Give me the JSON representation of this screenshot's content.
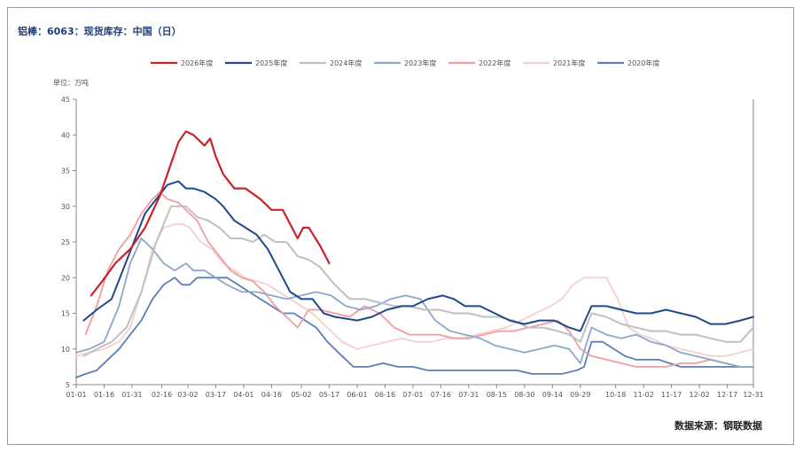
{
  "title": "铝棒：6063：现货库存：中国（日）",
  "source": "数据来源：钢联数据",
  "chart_data": {
    "type": "line",
    "ylabel": "单位：万吨",
    "ylim": [
      5,
      45
    ],
    "yticks": [
      5,
      10,
      15,
      20,
      25,
      30,
      35,
      40,
      45
    ],
    "xlim": [
      1,
      365
    ],
    "xticks": [
      {
        "label": "01-01",
        "day": 1
      },
      {
        "label": "01-16",
        "day": 16
      },
      {
        "label": "01-31",
        "day": 31
      },
      {
        "label": "02-16",
        "day": 47
      },
      {
        "label": "03-02",
        "day": 61
      },
      {
        "label": "03-17",
        "day": 76
      },
      {
        "label": "04-01",
        "day": 91
      },
      {
        "label": "04-16",
        "day": 106
      },
      {
        "label": "05-02",
        "day": 122
      },
      {
        "label": "05-17",
        "day": 137
      },
      {
        "label": "06-01",
        "day": 152
      },
      {
        "label": "06-16",
        "day": 167
      },
      {
        "label": "07-01",
        "day": 182
      },
      {
        "label": "07-16",
        "day": 197
      },
      {
        "label": "07-31",
        "day": 212
      },
      {
        "label": "08-15",
        "day": 227
      },
      {
        "label": "08-30",
        "day": 242
      },
      {
        "label": "09-14",
        "day": 257
      },
      {
        "label": "09-29",
        "day": 272
      },
      {
        "label": "10-18",
        "day": 291
      },
      {
        "label": "11-02",
        "day": 306
      },
      {
        "label": "11-17",
        "day": 321
      },
      {
        "label": "12-02",
        "day": 336
      },
      {
        "label": "12-17",
        "day": 351
      },
      {
        "label": "12-31",
        "day": 365
      }
    ],
    "legend_position": "top",
    "series": [
      {
        "name": "2026年度",
        "color": "#c8222a",
        "width": 2.2,
        "x": [
          9,
          15,
          22,
          30,
          38,
          46,
          52,
          56,
          60,
          64,
          70,
          73,
          76,
          80,
          86,
          92,
          100,
          106,
          112,
          116,
          120,
          123,
          126,
          132,
          137
        ],
        "y": [
          17.5,
          19.5,
          22,
          24,
          27,
          31.5,
          36,
          39,
          40.5,
          40,
          38.5,
          39.5,
          37,
          34.5,
          32.5,
          32.5,
          31,
          29.5,
          29.5,
          27.5,
          25.5,
          27,
          27,
          24.5,
          22
        ]
      },
      {
        "name": "2025年度",
        "color": "#21478c",
        "width": 2.0,
        "x": [
          5,
          12,
          20,
          26,
          32,
          38,
          44,
          50,
          56,
          60,
          64,
          70,
          76,
          80,
          86,
          92,
          98,
          104,
          110,
          116,
          122,
          128,
          134,
          140,
          152,
          160,
          168,
          176,
          182,
          190,
          198,
          204,
          210,
          218,
          226,
          234,
          242,
          250,
          258,
          266,
          272,
          278,
          286,
          294,
          302,
          310,
          318,
          326,
          334,
          342,
          350,
          358,
          365
        ],
        "y": [
          14,
          15.5,
          17,
          21,
          25,
          29,
          31,
          33,
          33.5,
          32.5,
          32.5,
          32,
          31,
          30,
          28,
          27,
          26,
          24,
          21,
          18,
          17,
          17,
          15,
          14.5,
          14,
          14.5,
          15.5,
          16,
          16,
          17,
          17.5,
          17,
          16,
          16,
          15,
          14,
          13.5,
          14,
          14,
          13,
          12.5,
          16,
          16,
          15.5,
          15,
          15,
          15.5,
          15,
          14.5,
          13.5,
          13.5,
          14,
          14.5
        ]
      },
      {
        "name": "2024年度",
        "color": "#c0c0c0",
        "width": 2.0,
        "x": [
          5,
          12,
          20,
          28,
          36,
          44,
          52,
          60,
          66,
          72,
          78,
          84,
          90,
          96,
          102,
          108,
          114,
          120,
          126,
          132,
          140,
          148,
          156,
          164,
          172,
          180,
          188,
          196,
          204,
          212,
          220,
          228,
          236,
          244,
          252,
          260,
          266,
          272,
          278,
          286,
          294,
          302,
          310,
          318,
          326,
          334,
          342,
          350,
          358,
          365
        ],
        "y": [
          9,
          10,
          11,
          13,
          18,
          25,
          30,
          30,
          28.5,
          28,
          27,
          25.5,
          25.5,
          25,
          26,
          25,
          25,
          23,
          22.5,
          21.5,
          19,
          17,
          17,
          16.5,
          16,
          16,
          15.5,
          15.5,
          15,
          15,
          14.5,
          14.5,
          14,
          13,
          13,
          12.5,
          12,
          11,
          15,
          14.5,
          13.5,
          13,
          12.5,
          12.5,
          12,
          12,
          11.5,
          11,
          11,
          13
        ]
      },
      {
        "name": "2023年度",
        "color": "#8ca6cc",
        "width": 1.8,
        "x": [
          1,
          8,
          16,
          24,
          30,
          36,
          42,
          48,
          54,
          60,
          64,
          70,
          76,
          82,
          90,
          98,
          106,
          114,
          122,
          130,
          138,
          146,
          154,
          162,
          170,
          178,
          186,
          194,
          202,
          210,
          218,
          226,
          234,
          242,
          250,
          258,
          266,
          272,
          278,
          286,
          294,
          302,
          310,
          318,
          326,
          334,
          342,
          350,
          358,
          365
        ],
        "y": [
          9.5,
          10,
          11,
          16,
          22,
          25.5,
          24,
          22,
          21,
          22,
          21,
          21,
          20,
          19,
          18,
          18,
          17.5,
          17,
          17.5,
          18,
          17.5,
          16,
          15.5,
          16,
          17,
          17.5,
          17,
          14,
          12.5,
          12,
          11.5,
          10.5,
          10,
          9.5,
          10,
          10.5,
          10,
          8,
          13,
          12,
          11.5,
          12,
          11,
          10.5,
          9.5,
          9,
          8.5,
          8,
          7.5,
          7.5
        ]
      },
      {
        "name": "2022年度",
        "color": "#f09ca0",
        "width": 1.8,
        "x": [
          6,
          12,
          18,
          24,
          30,
          36,
          42,
          46,
          50,
          56,
          60,
          66,
          72,
          78,
          84,
          90,
          96,
          102,
          108,
          114,
          120,
          126,
          132,
          140,
          148,
          156,
          164,
          172,
          180,
          188,
          196,
          204,
          212,
          220,
          228,
          236,
          244,
          252,
          260,
          266,
          272,
          278,
          286,
          294,
          302,
          310,
          318,
          326,
          334,
          342,
          350,
          358,
          365
        ],
        "y": [
          12,
          16,
          21,
          24,
          26,
          29,
          31,
          32,
          31,
          30.5,
          29.5,
          28,
          25,
          23,
          21,
          20,
          19.5,
          18,
          16,
          14.5,
          13,
          15.5,
          15.5,
          15,
          14.5,
          16,
          15,
          13,
          12,
          12,
          12,
          11.5,
          11.5,
          12,
          12.5,
          12.5,
          13,
          13.5,
          14,
          12.5,
          10,
          9,
          8.5,
          8,
          7.5,
          7.5,
          7.5,
          8,
          8,
          8.5,
          8,
          7.5,
          7.5
        ]
      },
      {
        "name": "2021年度",
        "color": "#f3cfcf",
        "width": 1.8,
        "x": [
          1,
          8,
          16,
          24,
          30,
          36,
          42,
          48,
          54,
          58,
          62,
          68,
          74,
          80,
          86,
          92,
          98,
          104,
          110,
          116,
          122,
          128,
          136,
          144,
          152,
          160,
          168,
          176,
          184,
          192,
          200,
          208,
          216,
          224,
          232,
          240,
          248,
          256,
          262,
          268,
          274,
          280,
          286,
          292,
          298,
          304,
          310,
          318,
          326,
          334,
          342,
          350,
          358,
          365
        ],
        "y": [
          9,
          9.5,
          10,
          11,
          13,
          18,
          24,
          27,
          27.5,
          27.5,
          27,
          25,
          24,
          22,
          21,
          20,
          19.5,
          19,
          18,
          17,
          16,
          15,
          13,
          11,
          10,
          10.5,
          11,
          11.5,
          11,
          11,
          11.5,
          11.5,
          12,
          12.5,
          13,
          14,
          15,
          16,
          17,
          19,
          20,
          20,
          20,
          17,
          13,
          12,
          11.5,
          10.5,
          10,
          9.5,
          9,
          9,
          9.5,
          10
        ]
      },
      {
        "name": "2020年度",
        "color": "#5c7fb3",
        "width": 1.8,
        "x": [
          1,
          6,
          12,
          18,
          24,
          30,
          36,
          42,
          48,
          54,
          58,
          62,
          66,
          70,
          76,
          82,
          88,
          94,
          100,
          106,
          112,
          118,
          124,
          130,
          136,
          142,
          150,
          158,
          166,
          174,
          182,
          190,
          198,
          206,
          214,
          222,
          230,
          238,
          246,
          254,
          262,
          270,
          274,
          278,
          284,
          290,
          296,
          302,
          308,
          314,
          320,
          326,
          332,
          340,
          348,
          356,
          365
        ],
        "y": [
          6,
          6.5,
          7,
          8.5,
          10,
          12,
          14,
          17,
          19,
          20,
          19,
          19,
          20,
          20,
          20,
          20,
          19,
          18,
          17,
          16,
          15,
          15,
          14,
          13,
          11,
          9.5,
          7.5,
          7.5,
          8,
          7.5,
          7.5,
          7,
          7,
          7,
          7,
          7,
          7,
          7,
          6.5,
          6.5,
          6.5,
          7,
          7.5,
          11,
          11,
          10,
          9,
          8.5,
          8.5,
          8.5,
          8,
          7.5,
          7.5,
          7.5,
          7.5,
          7.5,
          7.5
        ]
      }
    ]
  }
}
